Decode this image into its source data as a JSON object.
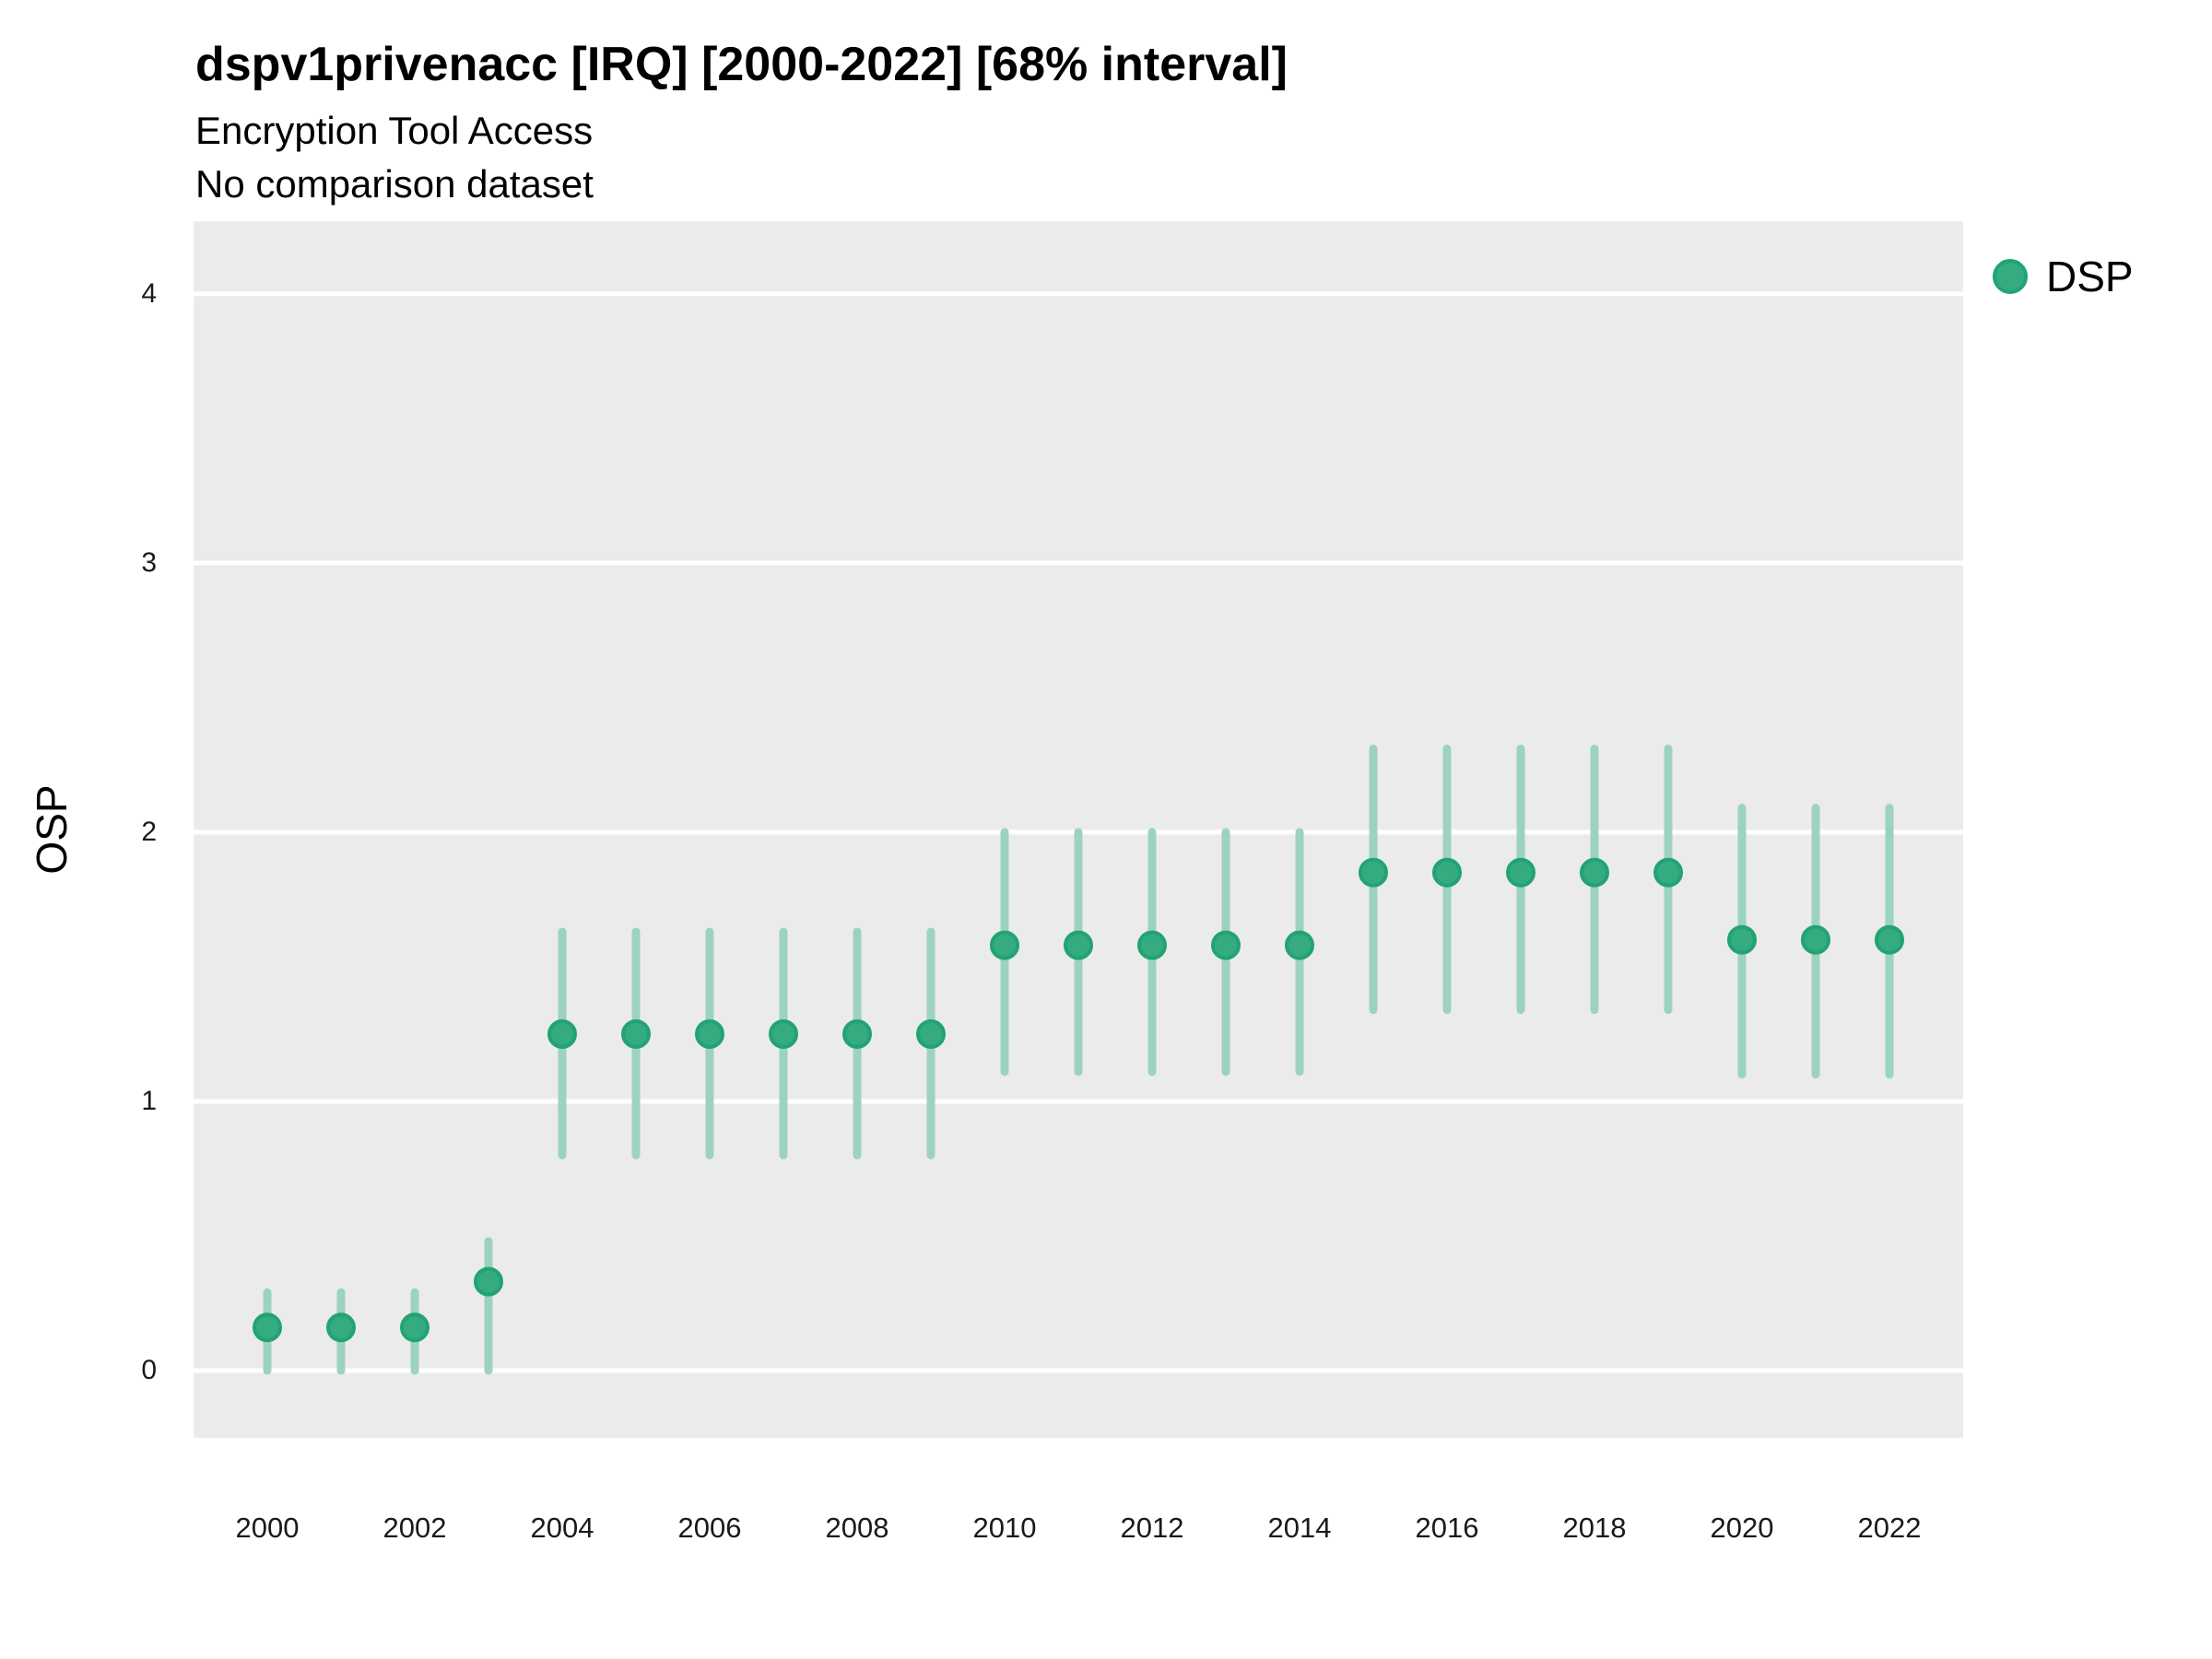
{
  "header": {
    "title": "dspv1privenacc [IRQ] [2000-2022] [68% interval]",
    "subtitle": "Encryption Tool Access",
    "dataset_note": "No comparison dataset"
  },
  "axes": {
    "y_label": "OSP",
    "y_ticks": [
      0,
      1,
      2,
      3,
      4
    ],
    "x_ticks": [
      2000,
      2002,
      2004,
      2006,
      2008,
      2010,
      2012,
      2014,
      2016,
      2018,
      2020,
      2022
    ]
  },
  "legend": {
    "position": "right",
    "items": [
      {
        "label": "DSP",
        "color": "#35ab80"
      }
    ]
  },
  "colors": {
    "page_bg": "#ffffff",
    "panel_bg": "#ebebeb",
    "gridline": "#ffffff",
    "point_fill": "#35ab80",
    "point_stroke": "#21a375",
    "errorbar": "#9cd3bf",
    "text": "#000000",
    "tick_text": "#1a1a1a"
  },
  "chart_data": {
    "type": "scatter",
    "title": "dspv1privenacc [IRQ] [2000-2022] [68% interval]",
    "subtitle": "Encryption Tool Access",
    "note": "No comparison dataset",
    "xlabel": "",
    "ylabel": "OSP",
    "interval_label": "68% interval",
    "grid": true,
    "legend_position": "right",
    "xlim": [
      1999,
      2023
    ],
    "ylim": [
      -0.25,
      4.27
    ],
    "x_ticks": [
      2000,
      2002,
      2004,
      2006,
      2008,
      2010,
      2012,
      2014,
      2016,
      2018,
      2020,
      2022
    ],
    "y_ticks": [
      0,
      1,
      2,
      3,
      4
    ],
    "series": [
      {
        "name": "DSP",
        "color": "#35ab80",
        "x": [
          2000,
          2001,
          2002,
          2003,
          2004,
          2005,
          2006,
          2007,
          2008,
          2009,
          2010,
          2011,
          2012,
          2013,
          2014,
          2015,
          2016,
          2017,
          2018,
          2019,
          2020,
          2021,
          2022
        ],
        "y": [
          0.16,
          0.16,
          0.16,
          0.33,
          1.25,
          1.25,
          1.25,
          1.25,
          1.25,
          1.25,
          1.58,
          1.58,
          1.58,
          1.58,
          1.58,
          1.85,
          1.85,
          1.85,
          1.85,
          1.85,
          1.6,
          1.6,
          1.6
        ],
        "lo": [
          0.0,
          0.0,
          0.0,
          0.0,
          0.8,
          0.8,
          0.8,
          0.8,
          0.8,
          0.8,
          1.11,
          1.11,
          1.11,
          1.11,
          1.11,
          1.34,
          1.34,
          1.34,
          1.34,
          1.34,
          1.1,
          1.1,
          1.1
        ],
        "hi": [
          0.29,
          0.29,
          0.29,
          0.48,
          1.63,
          1.63,
          1.63,
          1.63,
          1.63,
          1.63,
          2.0,
          2.0,
          2.0,
          2.0,
          2.0,
          2.31,
          2.31,
          2.31,
          2.31,
          2.31,
          2.09,
          2.09,
          2.09
        ]
      }
    ]
  }
}
